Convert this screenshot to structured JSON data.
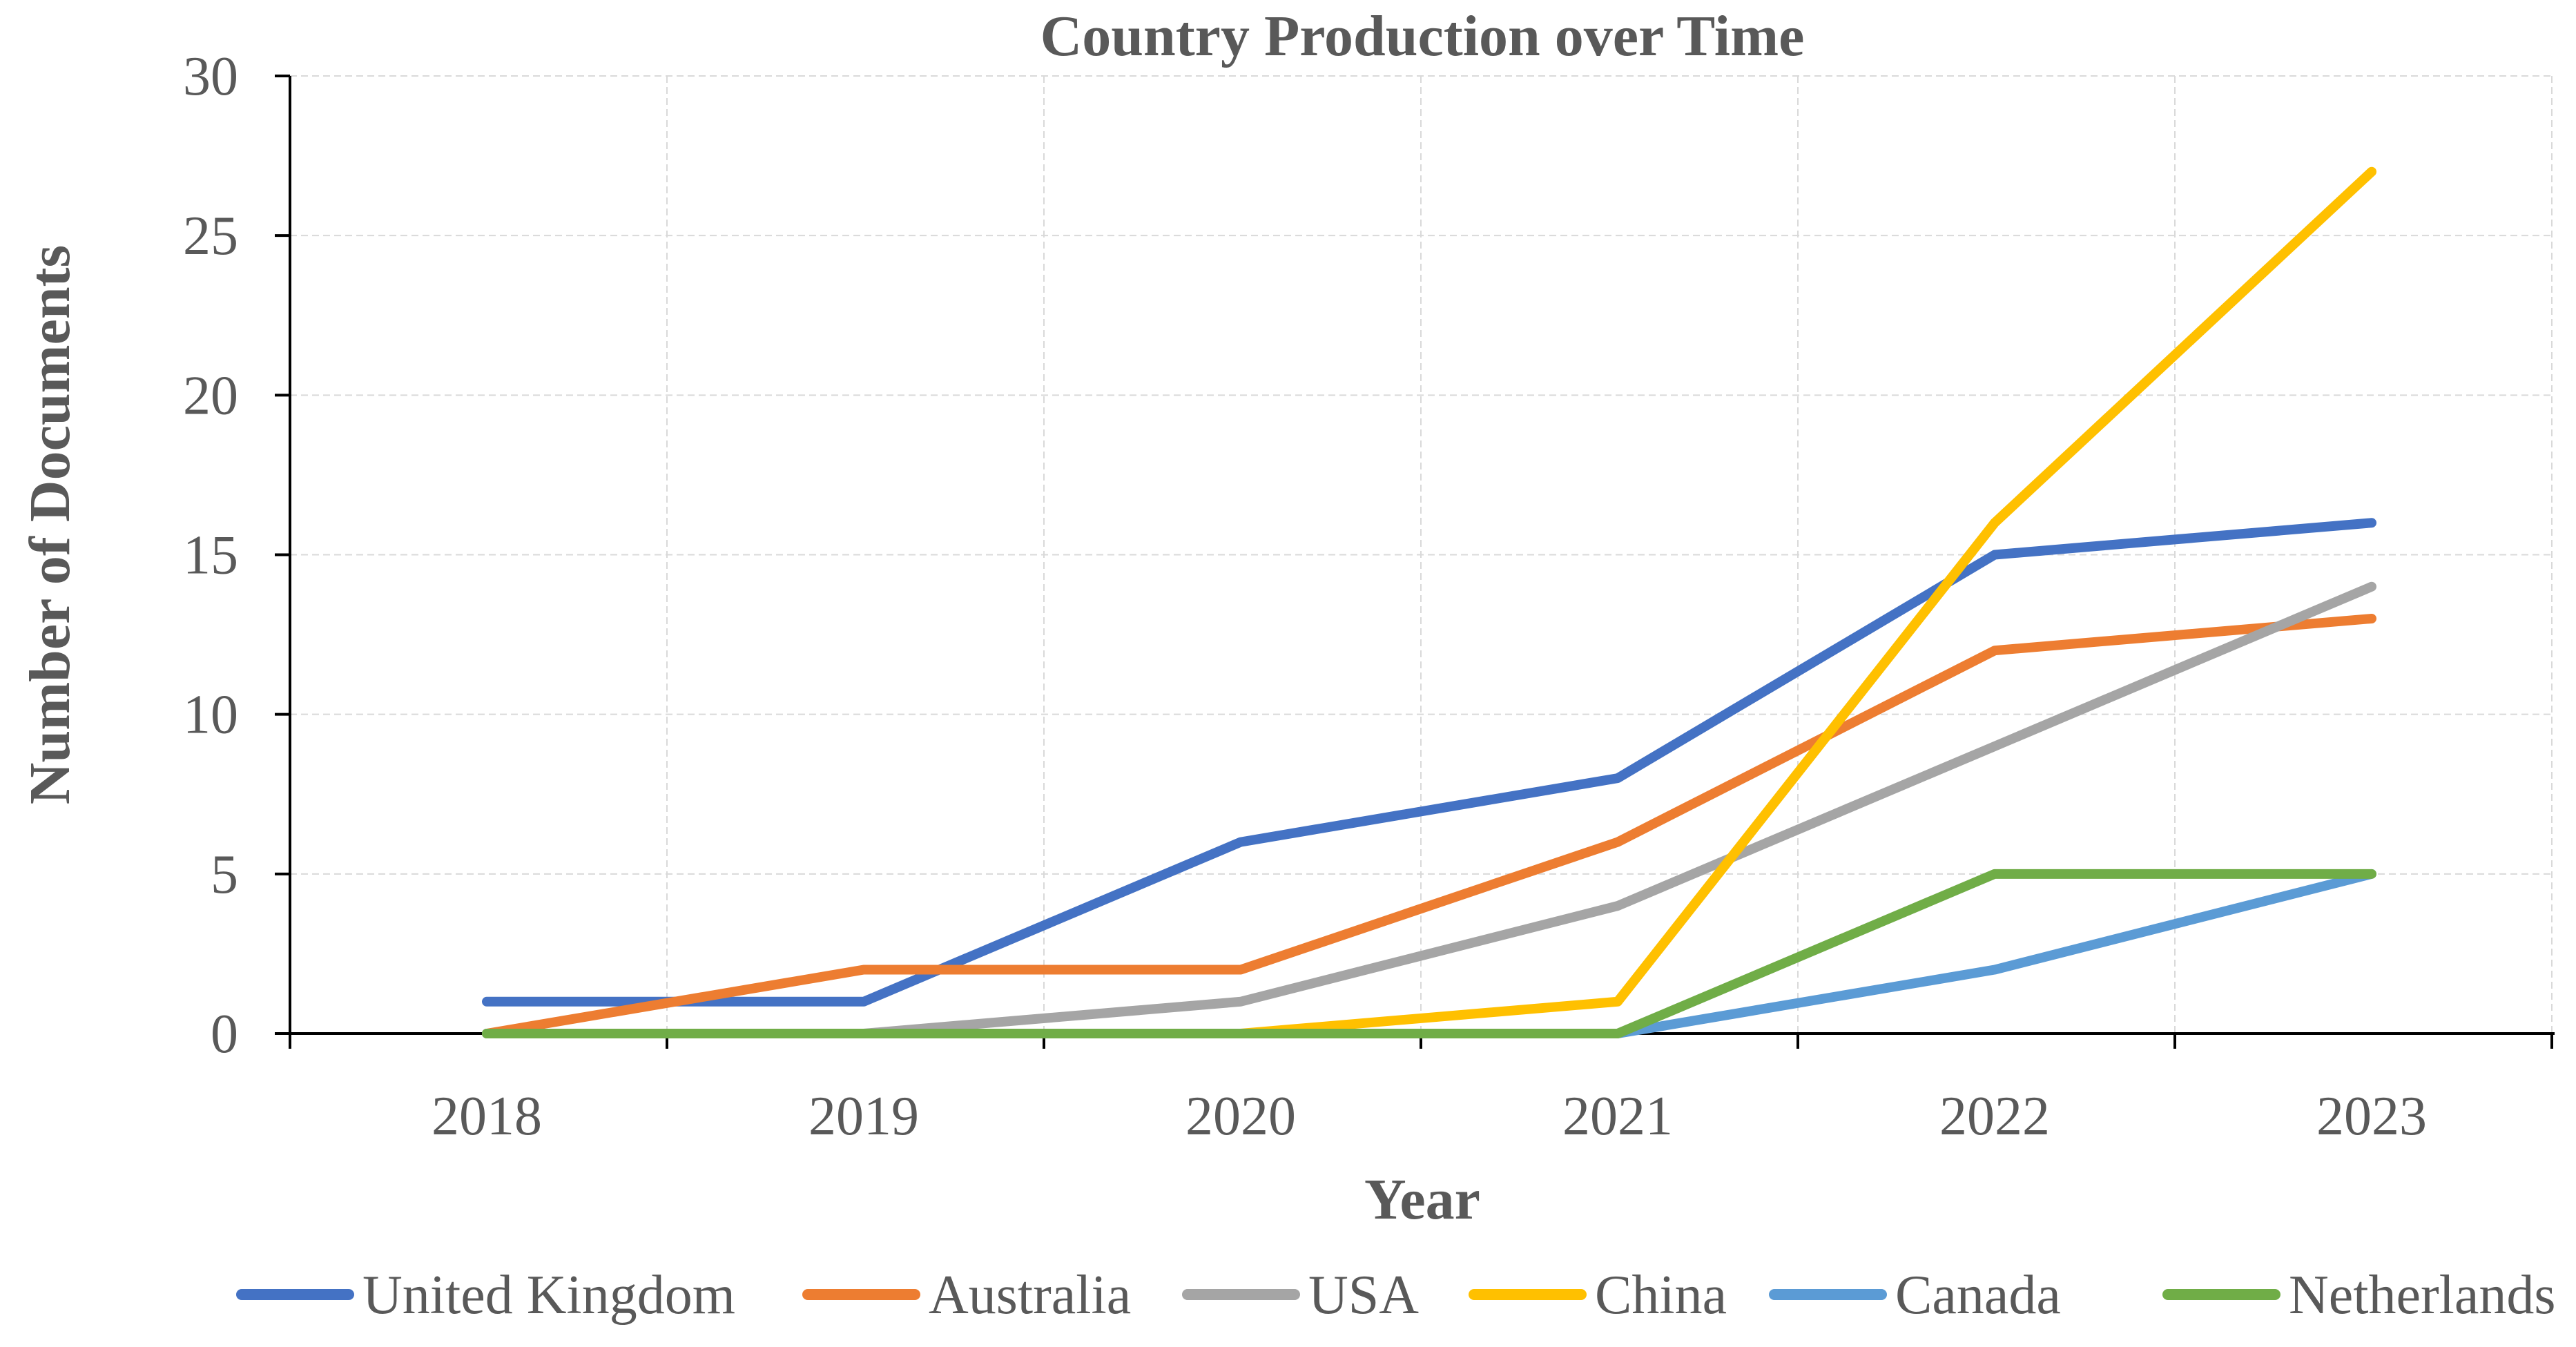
{
  "chart_data": {
    "type": "line",
    "title": "Country Production over Time",
    "xlabel": "Year",
    "ylabel": "Number of Documents",
    "categories": [
      "2018",
      "2019",
      "2020",
      "2021",
      "2022",
      "2023"
    ],
    "y_ticks": [
      "0",
      "5",
      "10",
      "15",
      "20",
      "25",
      "30"
    ],
    "ylim": [
      0,
      30
    ],
    "grid": true,
    "legend_position": "bottom",
    "series": [
      {
        "name": "United Kingdom",
        "color": "#4472C4",
        "values": [
          1,
          1,
          6,
          8,
          15,
          16
        ]
      },
      {
        "name": "Australia",
        "color": "#ED7D31",
        "values": [
          0,
          2,
          2,
          6,
          12,
          13
        ]
      },
      {
        "name": "USA",
        "color": "#A5A5A5",
        "values": [
          0,
          0,
          1,
          4,
          9,
          14
        ]
      },
      {
        "name": "China",
        "color": "#FFC000",
        "values": [
          0,
          0,
          0,
          1,
          16,
          27
        ]
      },
      {
        "name": "Canada",
        "color": "#5B9BD5",
        "values": [
          0,
          0,
          0,
          0,
          2,
          5
        ]
      },
      {
        "name": "Netherlands",
        "color": "#70AD47",
        "values": [
          0,
          0,
          0,
          0,
          5,
          5
        ]
      }
    ]
  }
}
